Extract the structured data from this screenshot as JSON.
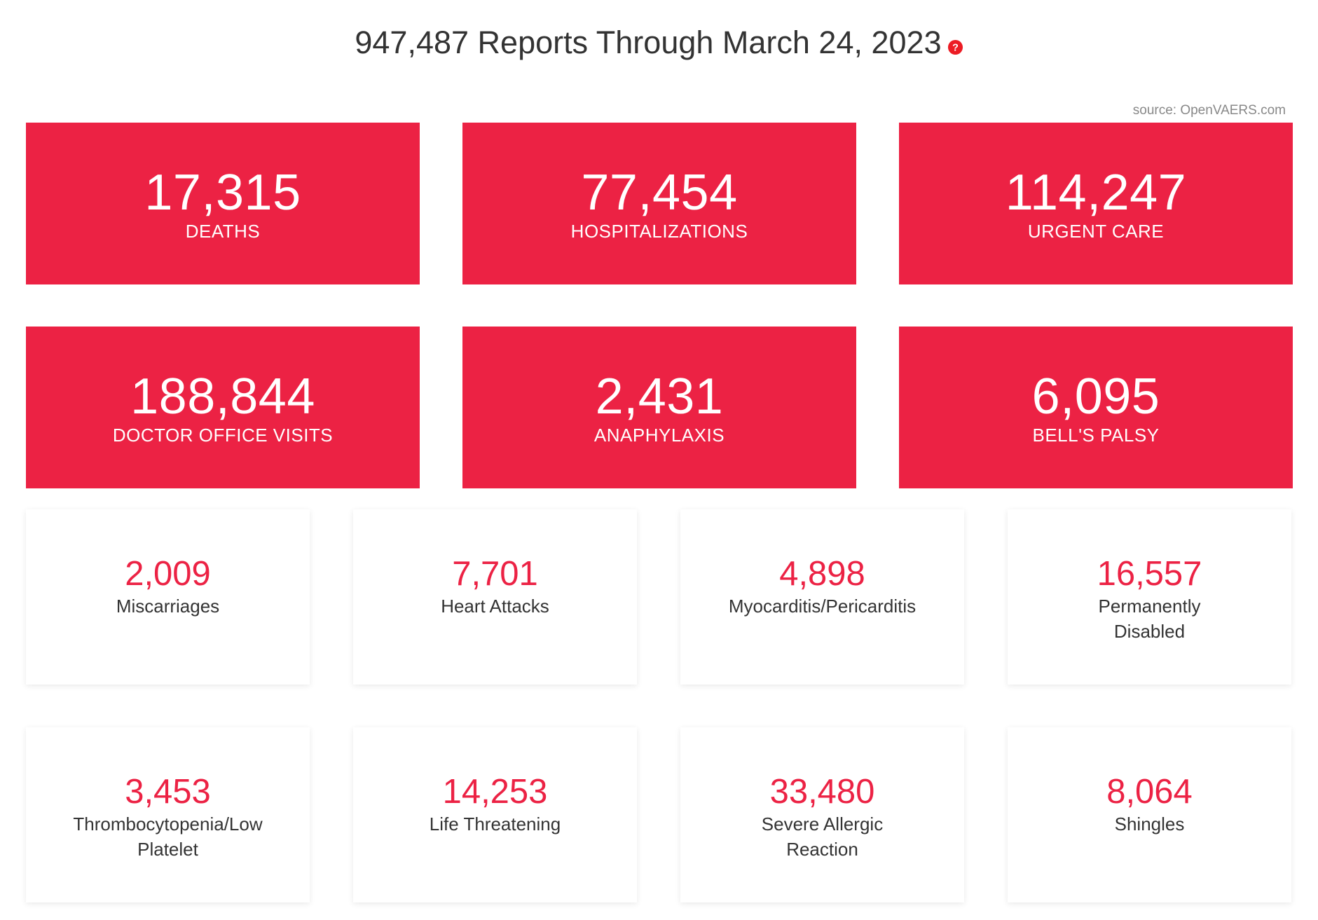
{
  "header": {
    "title": "947,487 Reports Through March 24, 2023",
    "help_icon": "question-circle-icon",
    "help_icon_glyph": "?",
    "help_icon_color": "#ec1c24"
  },
  "source": "source: OpenVAERS.com",
  "colors": {
    "accent": "#ec2244",
    "text": "#333333",
    "muted": "#888888"
  },
  "primary_stats": [
    {
      "value": "17,315",
      "label": "DEATHS"
    },
    {
      "value": "77,454",
      "label": "HOSPITALIZATIONS"
    },
    {
      "value": "114,247",
      "label": "URGENT CARE"
    },
    {
      "value": "188,844",
      "label": "DOCTOR OFFICE VISITS"
    },
    {
      "value": "2,431",
      "label": "ANAPHYLAXIS"
    },
    {
      "value": "6,095",
      "label": "BELL'S PALSY"
    }
  ],
  "secondary_stats": [
    {
      "value": "2,009",
      "label": "Miscarriages"
    },
    {
      "value": "7,701",
      "label": "Heart Attacks"
    },
    {
      "value": "4,898",
      "label": "Myocarditis/Pericarditis"
    },
    {
      "value": "16,557",
      "label": "Permanently Disabled"
    },
    {
      "value": "3,453",
      "label": "Thrombocytopenia/Low Platelet"
    },
    {
      "value": "14,253",
      "label": "Life Threatening"
    },
    {
      "value": "33,480",
      "label": "Severe Allergic Reaction"
    },
    {
      "value": "8,064",
      "label": "Shingles"
    }
  ]
}
